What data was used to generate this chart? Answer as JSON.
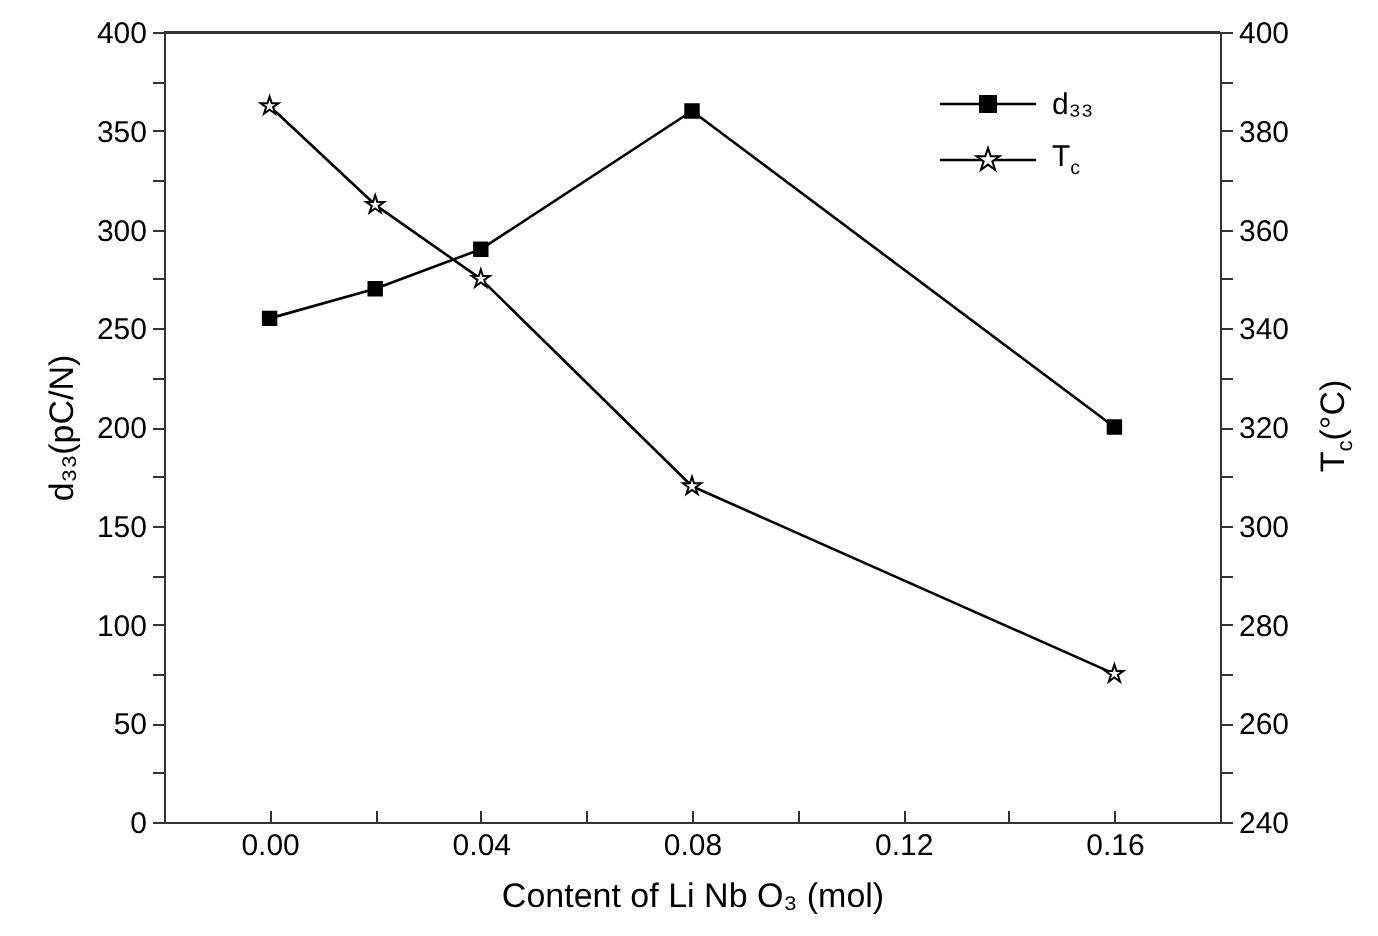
{
  "chart_data": {
    "type": "line",
    "xlabel": "Content of Li Nb O₃ (mol)",
    "ylabel": "d₃₃(pC/N)",
    "y2label": "T$_{c}$(°C)",
    "x": [
      0,
      0.02,
      0.04,
      0.08,
      0.16
    ],
    "series": [
      {
        "name": "d₃₃",
        "color": "#000000",
        "marker": "square",
        "values": [
          255,
          270,
          290,
          360,
          200
        ]
      },
      {
        "name": "T$_{c}$",
        "color": "#000000",
        "marker": "star",
        "axis": "y2",
        "values": [
          385,
          365,
          350,
          308,
          270
        ]
      }
    ],
    "xlim": [
      -0.02,
      0.18
    ],
    "xticks": [
      {
        "value": 0,
        "label": "0.00"
      },
      {
        "value": 0.02,
        "label": null
      },
      {
        "value": 0.04,
        "label": "0.04"
      },
      {
        "value": 0.06,
        "label": null
      },
      {
        "value": 0.08,
        "label": "0.08"
      },
      {
        "value": 0.1,
        "label": null
      },
      {
        "value": 0.12,
        "label": "0.12"
      },
      {
        "value": 0.14,
        "label": null
      },
      {
        "value": 0.16,
        "label": "0.16"
      }
    ],
    "ylim": [
      0,
      400
    ],
    "yticks": [
      0,
      {
        "value": 25,
        "label": null
      },
      50,
      {
        "value": 75,
        "label": null
      },
      100,
      {
        "value": 125,
        "label": null
      },
      150,
      {
        "value": 175,
        "label": null
      },
      200,
      {
        "value": 225,
        "label": null
      },
      250,
      {
        "value": 275,
        "label": null
      },
      300,
      {
        "value": 325,
        "label": null
      },
      350,
      {
        "value": 375,
        "label": null
      },
      400
    ],
    "y2lim": [
      240,
      400
    ],
    "y2ticks": [
      240,
      {
        "value": 250,
        "label": null
      },
      260,
      {
        "value": 270,
        "label": null
      },
      280,
      {
        "value": 290,
        "label": null
      },
      300,
      {
        "value": 310,
        "label": null
      },
      320,
      {
        "value": 330,
        "label": null
      },
      340,
      {
        "value": 350,
        "label": null
      },
      360,
      {
        "value": 370,
        "label": null
      },
      380,
      {
        "value": 390,
        "label": null
      },
      400
    ],
    "legend": "top right",
    "line_style": "solid"
  }
}
